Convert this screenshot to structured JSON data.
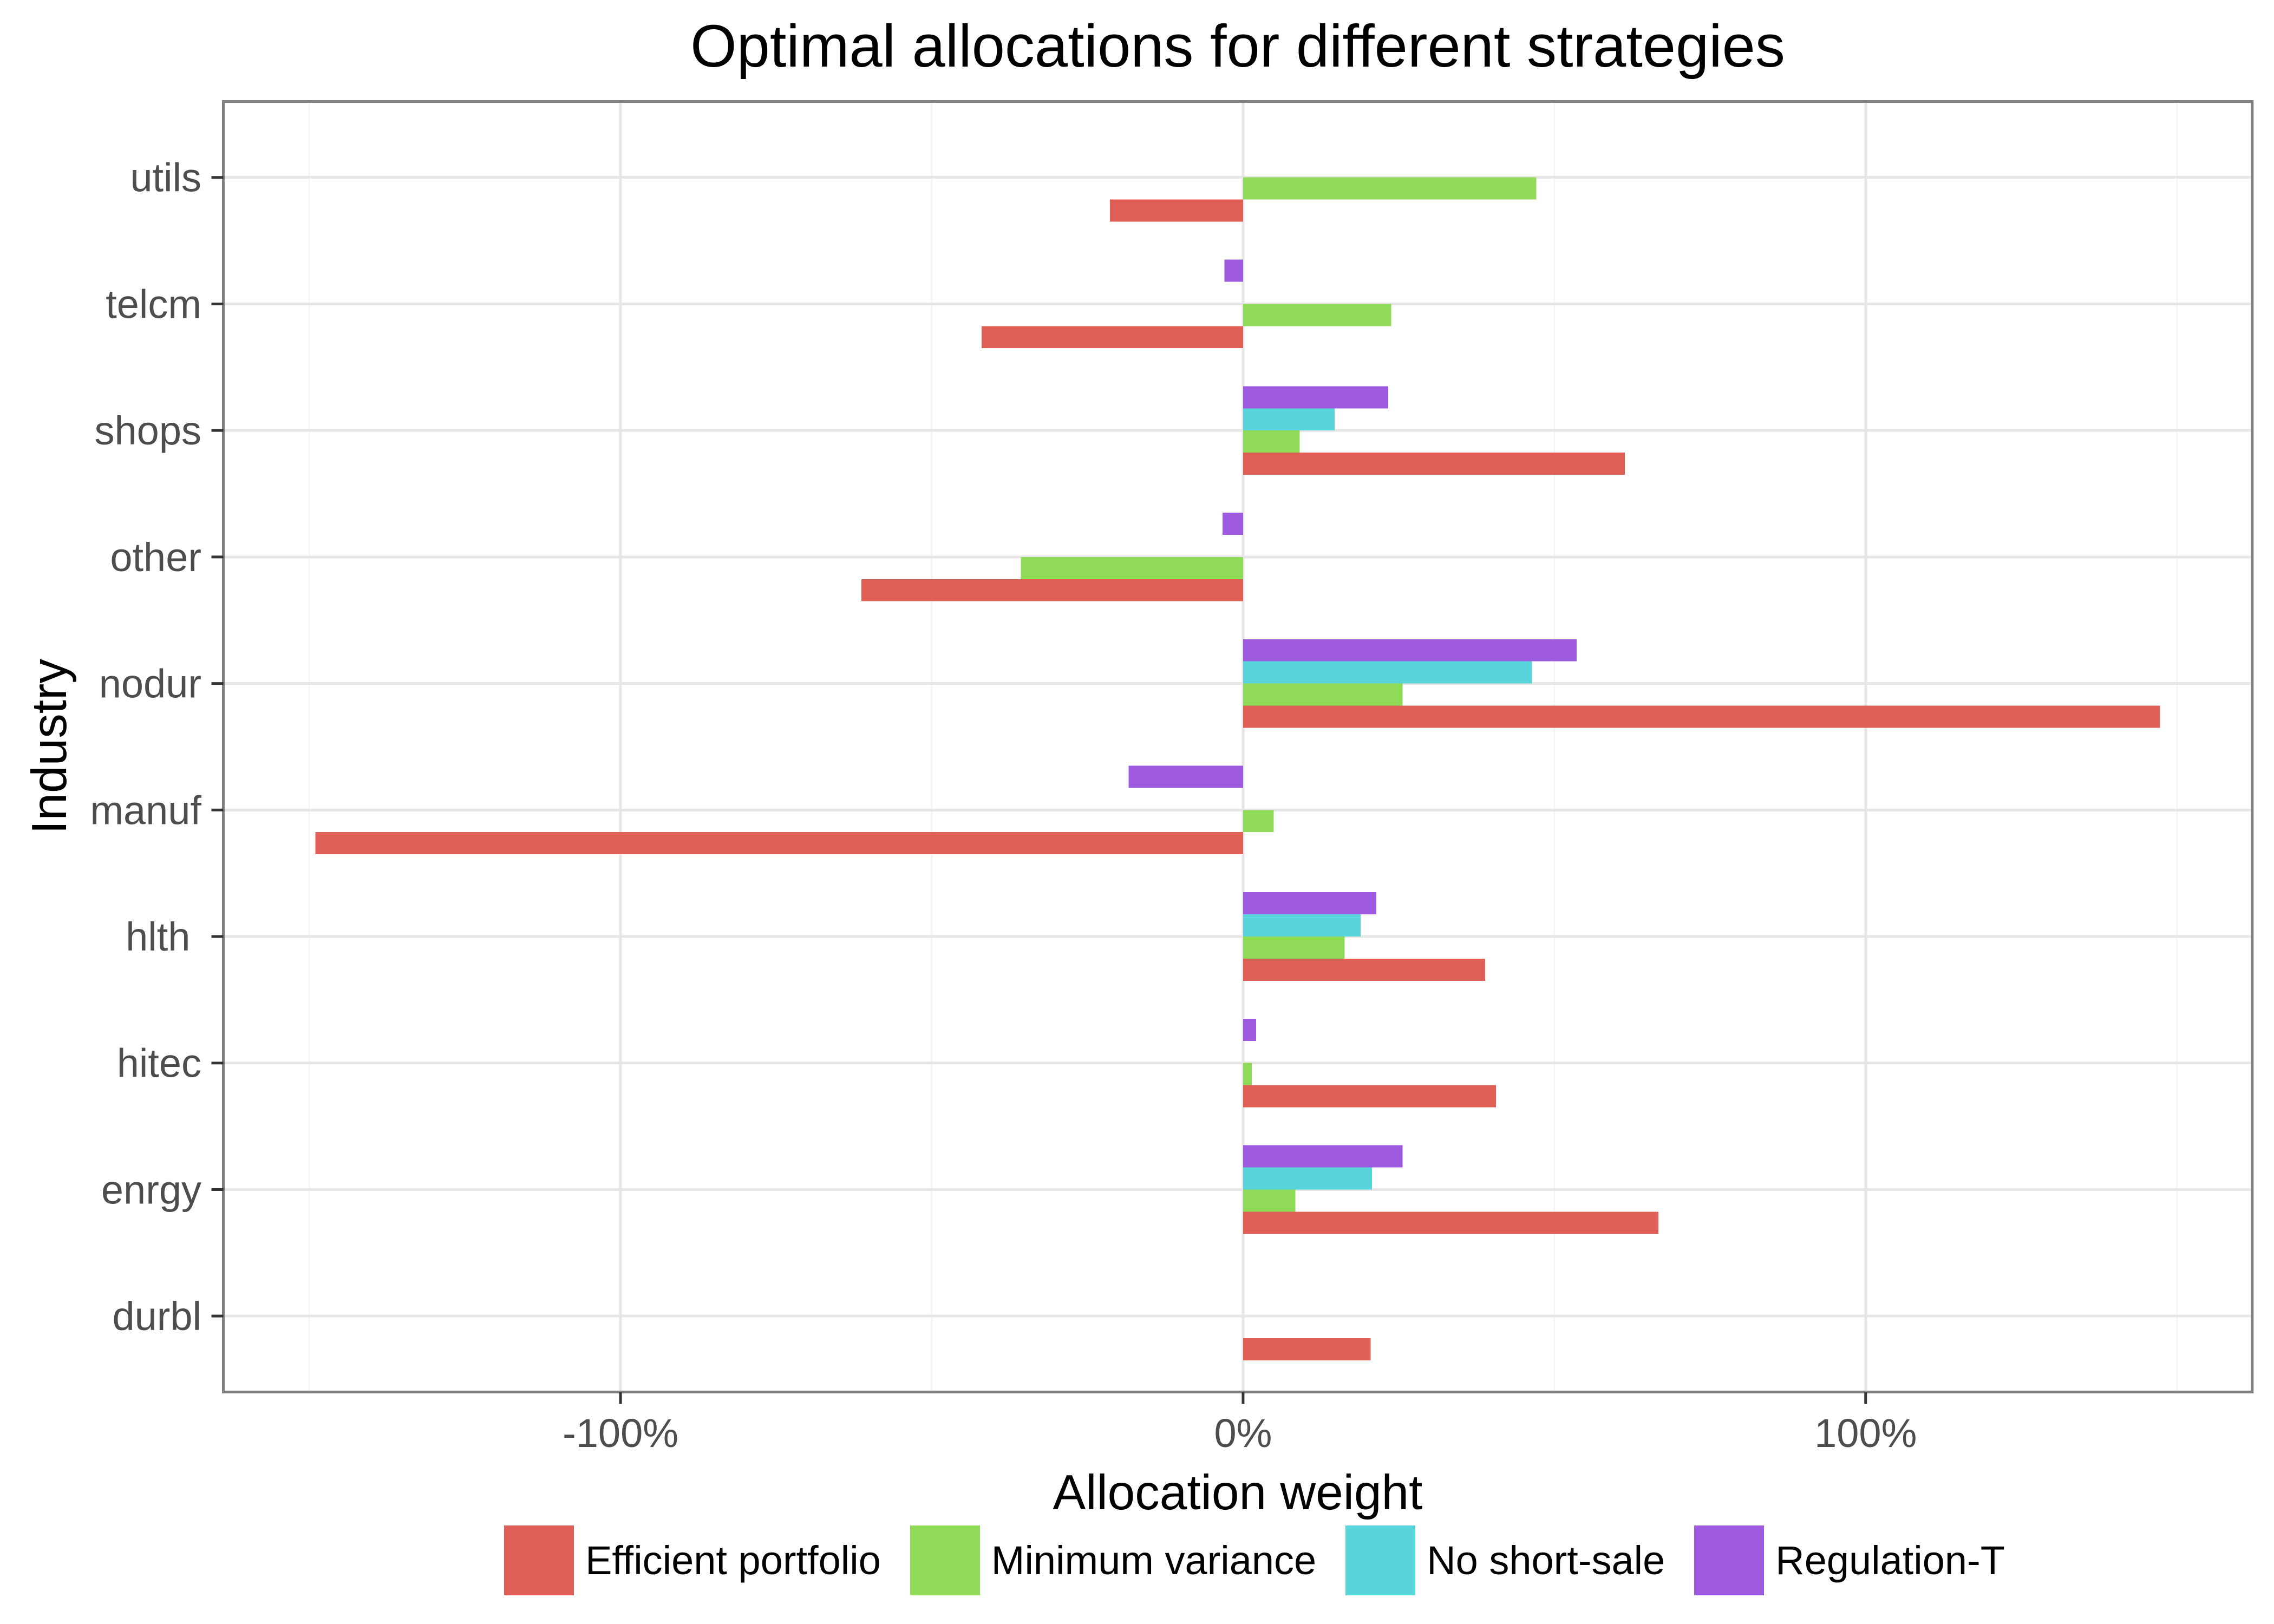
{
  "chart_data": {
    "type": "bar",
    "orientation": "horizontal",
    "title": "Optimal allocations for different strategies",
    "xlabel": "Allocation weight",
    "ylabel": "Industry",
    "categories": [
      "utils",
      "telcm",
      "shops",
      "other",
      "nodur",
      "manuf",
      "hlth ",
      "hitec",
      "enrgy",
      "durbl"
    ],
    "series": [
      {
        "name": "Efficient portfolio",
        "color": "#DF5F57",
        "values": [
          -21.4,
          -42.0,
          61.3,
          -61.3,
          147.3,
          -149.0,
          38.9,
          40.6,
          66.7,
          20.5
        ]
      },
      {
        "name": "Minimum variance",
        "color": "#8FDA57",
        "values": [
          47.1,
          23.8,
          9.1,
          -35.7,
          25.6,
          4.9,
          16.3,
          1.4,
          8.4,
          0.0
        ]
      },
      {
        "name": "No short-sale",
        "color": "#58D4DA",
        "values": [
          0.0,
          0.0,
          14.7,
          0.0,
          46.4,
          0.0,
          18.9,
          0.0,
          20.7,
          0.0
        ]
      },
      {
        "name": "Regulation-T",
        "color": "#9D5ADF",
        "values": [
          0.0,
          -3.0,
          23.3,
          -3.3,
          53.6,
          -18.4,
          21.4,
          2.1,
          25.6,
          0.0
        ]
      }
    ],
    "xlim": [
      -163.8,
      162.1
    ],
    "x_ticks": [
      -100,
      0,
      100
    ],
    "x_tick_labels": [
      "-100%",
      "0%",
      "100%"
    ],
    "x_minor_gridlines": [
      -150,
      -50,
      50,
      150
    ],
    "grid": true,
    "legend_position": "bottom"
  }
}
